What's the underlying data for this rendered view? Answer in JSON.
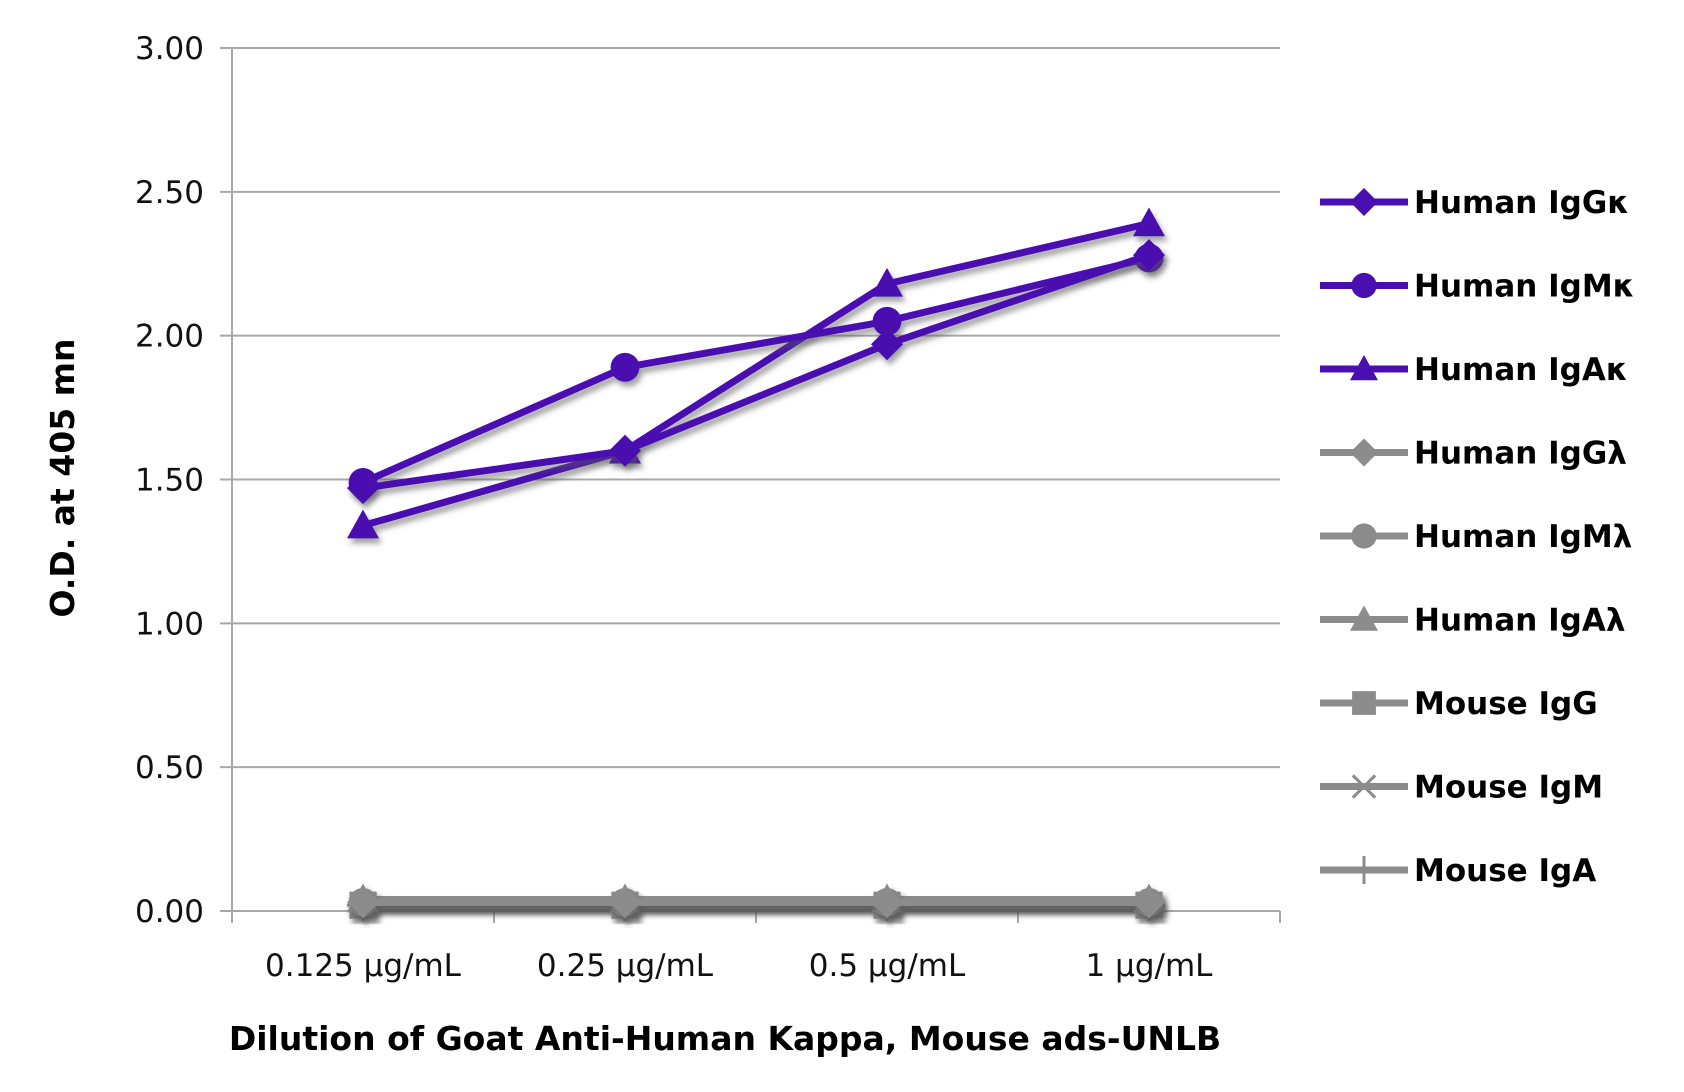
{
  "colors": {
    "kappa_series": "#4a0fb0",
    "lambda_series": "#8c8c8c",
    "gridline": "#a8a8a8",
    "axis": "#a8a8a8",
    "shadow": "#7a7a7a"
  },
  "chart_data": {
    "type": "line",
    "title": "",
    "xlabel": "Dilution of Goat Anti-Human Kappa, Mouse ads-UNLB",
    "ylabel": "O.D. at 405 mn",
    "categories": [
      "0.125 µg/mL",
      "0.25 µg/mL",
      "0.5 µg/mL",
      "1 µg/mL"
    ],
    "ylim": [
      0,
      3
    ],
    "yticks": [
      "0.00",
      "0.50",
      "1.00",
      "1.50",
      "2.00",
      "2.50",
      "3.00"
    ],
    "grid": true,
    "legend_position": "right",
    "series": [
      {
        "name": "Human IgGκ",
        "marker": "diamond",
        "color": "#4a0fb0",
        "values": [
          1.47,
          1.6,
          1.97,
          2.28
        ]
      },
      {
        "name": "Human IgMκ",
        "marker": "circle",
        "color": "#4a0fb0",
        "values": [
          1.49,
          1.89,
          2.05,
          2.27
        ]
      },
      {
        "name": "Human IgAκ",
        "marker": "triangle",
        "color": "#4a0fb0",
        "values": [
          1.34,
          1.6,
          2.18,
          2.39
        ]
      },
      {
        "name": "Human IgGλ",
        "marker": "diamond",
        "color": "#8c8c8c",
        "values": [
          0.03,
          0.03,
          0.03,
          0.03
        ]
      },
      {
        "name": "Human IgMλ",
        "marker": "circle",
        "color": "#8c8c8c",
        "values": [
          0.03,
          0.03,
          0.03,
          0.03
        ]
      },
      {
        "name": "Human IgAλ",
        "marker": "triangle",
        "color": "#8c8c8c",
        "values": [
          0.04,
          0.04,
          0.04,
          0.04
        ]
      },
      {
        "name": "Mouse IgG",
        "marker": "square",
        "color": "#8c8c8c",
        "values": [
          0.02,
          0.02,
          0.02,
          0.02
        ]
      },
      {
        "name": "Mouse IgM",
        "marker": "x",
        "color": "#8c8c8c",
        "values": [
          0.02,
          0.02,
          0.02,
          0.02
        ]
      },
      {
        "name": "Mouse IgA",
        "marker": "plus",
        "color": "#8c8c8c",
        "values": [
          0.02,
          0.02,
          0.02,
          0.02
        ]
      }
    ]
  }
}
